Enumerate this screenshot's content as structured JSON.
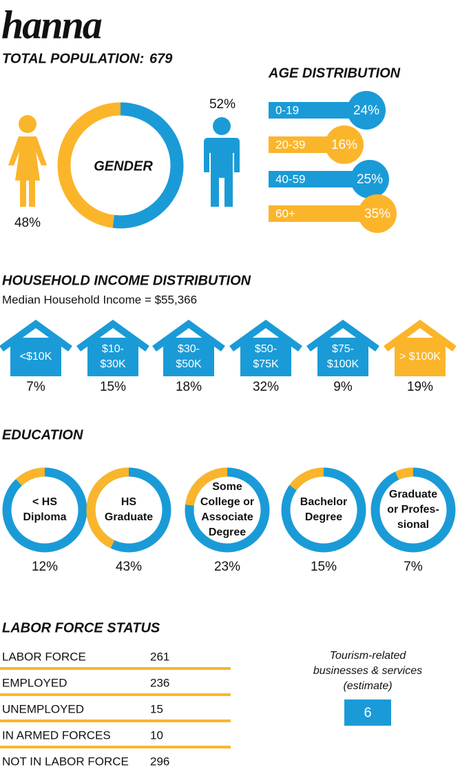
{
  "title": "hanna",
  "colors": {
    "blue": "#1a9bd7",
    "orange": "#fbb52b"
  },
  "total_population": {
    "label": "TOTAL POPULATION:",
    "value": 679
  },
  "gender": {
    "title": "GENDER",
    "female": {
      "value": 48,
      "label": "48%"
    },
    "male": {
      "value": 52,
      "label": "52%"
    }
  },
  "age_distribution": {
    "title": "AGE DISTRIBUTION",
    "groups": [
      {
        "name": "0-19",
        "value": 24,
        "label": "24%"
      },
      {
        "name": "20-39",
        "value": 16,
        "label": "16%"
      },
      {
        "name": "40-59",
        "value": 25,
        "label": "25%"
      },
      {
        "name": "60+",
        "value": 35,
        "label": "35%"
      }
    ]
  },
  "household_income": {
    "title": "HOUSEHOLD INCOME DISTRIBUTION",
    "subtitle": "Median Household Income = $55,366",
    "brackets": [
      {
        "lines": [
          "<$10K"
        ],
        "value": 7,
        "label": "7%"
      },
      {
        "lines": [
          "$10-",
          "$30K"
        ],
        "value": 15,
        "label": "15%"
      },
      {
        "lines": [
          "$30-",
          "$50K"
        ],
        "value": 18,
        "label": "18%"
      },
      {
        "lines": [
          "$50-",
          "$75K"
        ],
        "value": 32,
        "label": "32%"
      },
      {
        "lines": [
          "$75-",
          "$100K"
        ],
        "value": 9,
        "label": "9%"
      },
      {
        "lines": [
          "> $100K"
        ],
        "value": 19,
        "label": "19%",
        "highlight": true
      }
    ]
  },
  "education": {
    "title": "EDUCATION",
    "levels": [
      {
        "lines": [
          "< HS",
          "Diploma"
        ],
        "value": 12,
        "label": "12%"
      },
      {
        "lines": [
          "HS",
          "Graduate"
        ],
        "value": 43,
        "label": "43%"
      },
      {
        "lines": [
          "Some",
          "College or",
          "Associate",
          "Degree"
        ],
        "value": 23,
        "label": "23%"
      },
      {
        "lines": [
          "Bachelor",
          "Degree"
        ],
        "value": 15,
        "label": "15%"
      },
      {
        "lines": [
          "Graduate",
          "or Profes-",
          "sional"
        ],
        "value": 7,
        "label": "7%"
      }
    ]
  },
  "labor_force": {
    "title": "LABOR FORCE STATUS",
    "rows": [
      {
        "name": "LABOR FORCE",
        "value": 261
      },
      {
        "name": "EMPLOYED",
        "value": 236
      },
      {
        "name": "UNEMPLOYED",
        "value": 15
      },
      {
        "name": "IN ARMED FORCES",
        "value": 10
      },
      {
        "name": "NOT IN LABOR FORCE",
        "value": 296
      }
    ]
  },
  "tourism": {
    "lines": [
      "Tourism-related",
      "businesses & services",
      "(estimate)"
    ],
    "value": 6
  }
}
